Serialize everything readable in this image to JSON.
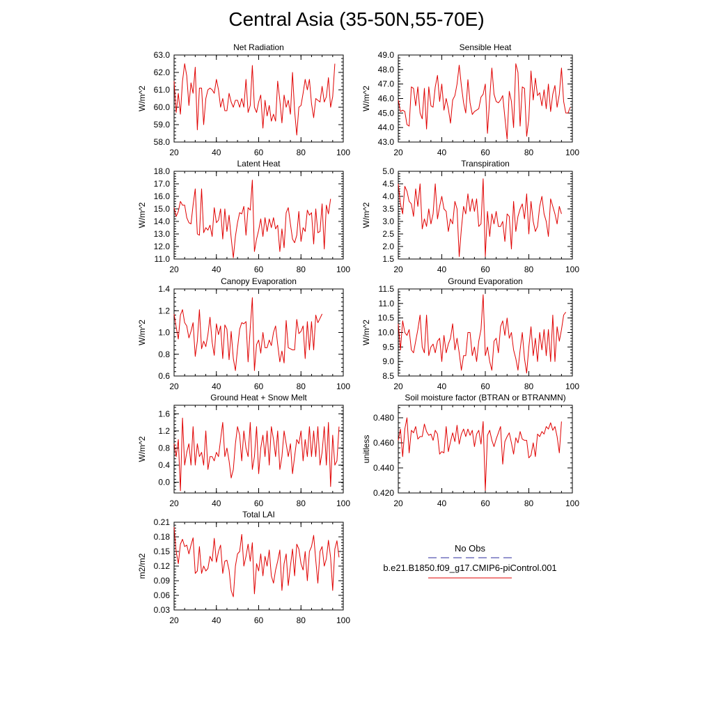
{
  "page_title": "Central Asia (35-50N,55-70E)",
  "colors": {
    "model_line": "#e00000",
    "obs_line": "#2b2b9c",
    "axis": "#000000"
  },
  "legend": {
    "obs_label": "No Obs",
    "model_label": "b.e21.B1850.f09_g17.CMIP6-piControl.001"
  },
  "chart_data": [
    {
      "type": "line",
      "title": "Net Radiation",
      "ylabel": "W/m^2",
      "xlim": [
        20,
        100
      ],
      "ylim": [
        58.0,
        63.0
      ],
      "xticks": [
        "20",
        "40",
        "60",
        "80",
        "100"
      ],
      "yticks": [
        "58.0",
        "59.0",
        "60.0",
        "61.0",
        "62.0",
        "63.0"
      ],
      "x_start": 20,
      "series": [
        {
          "values": [
            61.5,
            59.7,
            60.8,
            59.6,
            61.5,
            62.5,
            61.8,
            60.1,
            61.4,
            60.8,
            62.3,
            58.7,
            61.1,
            61.1,
            59.0,
            60.5,
            61.0,
            61.1,
            61.0,
            60.8,
            61.6,
            61.0,
            60.0,
            60.5,
            59.8,
            59.8,
            60.8,
            60.3,
            60.0,
            60.4,
            60.4,
            60.0,
            60.5,
            60.0,
            61.6,
            59.7,
            60.1,
            62.4,
            60.0,
            59.7,
            60.3,
            60.7,
            58.8,
            60.4,
            59.5,
            60.1,
            59.2,
            59.6,
            59.2,
            61.5,
            60.4,
            59.1,
            60.7,
            60.0,
            60.4,
            59.6,
            62.0,
            59.8,
            58.4,
            60.0,
            60.1,
            60.8,
            61.6,
            61.0,
            61.6,
            60.2,
            59.4,
            60.5,
            60.4,
            60.3,
            61.2,
            60.3,
            60.6,
            61.7,
            60.0,
            60.6,
            62.5
          ]
        }
      ]
    },
    {
      "type": "line",
      "title": "Sensible Heat",
      "ylabel": "W/m^2",
      "xlim": [
        20,
        100
      ],
      "ylim": [
        43.0,
        49.0
      ],
      "xticks": [
        "20",
        "40",
        "60",
        "80",
        "100"
      ],
      "yticks": [
        "43.0",
        "44.0",
        "45.0",
        "46.0",
        "47.0",
        "48.0",
        "49.0"
      ],
      "x_start": 20,
      "series": [
        {
          "values": [
            45.9,
            45.1,
            45.2,
            45.1,
            44.2,
            44.1,
            46.8,
            46.7,
            45.5,
            46.8,
            45.0,
            44.6,
            46.7,
            43.9,
            46.8,
            45.5,
            45.4,
            46.8,
            47.6,
            45.8,
            47.0,
            45.2,
            46.0,
            45.3,
            44.3,
            45.9,
            46.2,
            47.0,
            48.3,
            46.9,
            45.7,
            45.0,
            47.3,
            45.7,
            44.9,
            45.1,
            45.2,
            45.3,
            46.1,
            46.3,
            47.0,
            43.6,
            46.0,
            48.1,
            46.3,
            45.8,
            45.7,
            45.9,
            46.2,
            44.7,
            43.2,
            46.5,
            45.8,
            44.0,
            48.4,
            47.8,
            44.1,
            46.8,
            46.7,
            43.4,
            44.6,
            47.9,
            45.9,
            47.4,
            46.2,
            46.4,
            45.5,
            46.6,
            45.3,
            47.0,
            45.1,
            46.3,
            46.9,
            45.4,
            46.3,
            48.1,
            45.8,
            45.0,
            45.0,
            45.4
          ]
        }
      ]
    },
    {
      "type": "line",
      "title": "Latent Heat",
      "ylabel": "W/m^2",
      "xlim": [
        20,
        100
      ],
      "ylim": [
        11.0,
        18.0
      ],
      "xticks": [
        "20",
        "40",
        "60",
        "80",
        "100"
      ],
      "yticks": [
        "11.0",
        "12.0",
        "13.0",
        "14.0",
        "15.0",
        "16.0",
        "17.0",
        "18.0"
      ],
      "x_start": 20,
      "series": [
        {
          "values": [
            15.1,
            14.4,
            14.8,
            15.6,
            15.3,
            15.3,
            14.3,
            13.9,
            13.8,
            15.3,
            16.6,
            13.0,
            12.9,
            16.6,
            13.1,
            13.5,
            13.3,
            13.7,
            12.8,
            15.1,
            13.9,
            14.1,
            15.0,
            12.6,
            15.0,
            13.2,
            14.5,
            12.7,
            11.1,
            12.8,
            13.9,
            14.7,
            14.6,
            15.2,
            12.9,
            15.1,
            14.9,
            17.3,
            11.6,
            12.6,
            13.3,
            14.2,
            12.8,
            14.3,
            13.2,
            14.2,
            13.5,
            14.3,
            13.4,
            13.7,
            11.6,
            13.4,
            11.9,
            14.7,
            15.1,
            13.8,
            12.6,
            12.3,
            12.9,
            14.8,
            12.4,
            13.5,
            13.2,
            14.9,
            14.5,
            14.7,
            12.2,
            15.0,
            13.1,
            13.2,
            15.4,
            11.8,
            15.3,
            14.6,
            15.8
          ]
        }
      ]
    },
    {
      "type": "line",
      "title": "Transpiration",
      "ylabel": "W/m^2",
      "xlim": [
        20,
        100
      ],
      "ylim": [
        1.5,
        5.0
      ],
      "xticks": [
        "20",
        "40",
        "60",
        "80",
        "100"
      ],
      "yticks": [
        "1.5",
        "2.0",
        "2.5",
        "3.0",
        "3.5",
        "4.0",
        "4.5",
        "5.0"
      ],
      "x_start": 20,
      "series": [
        {
          "values": [
            4.5,
            3.7,
            3.3,
            4.4,
            4.2,
            3.8,
            3.7,
            3.2,
            4.3,
            3.6,
            4.5,
            2.7,
            3.1,
            2.8,
            3.5,
            2.9,
            3.3,
            4.5,
            3.1,
            3.6,
            4.0,
            3.5,
            3.4,
            2.6,
            3.1,
            2.9,
            3.8,
            3.5,
            1.6,
            2.7,
            3.6,
            3.3,
            4.1,
            3.4,
            3.9,
            3.4,
            3.9,
            2.8,
            2.9,
            4.7,
            1.6,
            3.4,
            2.4,
            3.3,
            2.9,
            3.4,
            2.8,
            2.8,
            3.0,
            2.2,
            3.3,
            3.2,
            1.9,
            3.8,
            2.6,
            3.2,
            3.5,
            3.7,
            3.1,
            4.1,
            2.5,
            3.8,
            3.0,
            2.6,
            2.8,
            3.6,
            4.0,
            3.3,
            3.0,
            2.4,
            3.9,
            3.6,
            3.3,
            2.9,
            3.6,
            3.3
          ]
        }
      ]
    },
    {
      "type": "line",
      "title": "Canopy Evaporation",
      "ylabel": "W/m^2",
      "xlim": [
        20,
        100
      ],
      "ylim": [
        0.6,
        1.4
      ],
      "xticks": [
        "20",
        "40",
        "60",
        "80",
        "100"
      ],
      "yticks": [
        "0.6",
        "0.8",
        "1.0",
        "1.2",
        "1.4"
      ],
      "x_start": 20,
      "series": [
        {
          "values": [
            1.17,
            1.05,
            0.94,
            1.16,
            1.21,
            1.09,
            1.06,
            0.95,
            1.01,
            1.09,
            0.78,
            0.92,
            1.21,
            0.85,
            0.92,
            0.87,
            0.98,
            1.14,
            0.91,
            0.79,
            1.08,
            0.98,
            1.06,
            0.76,
            1.07,
            1.03,
            0.75,
            1.01,
            0.76,
            0.65,
            0.85,
            1.03,
            1.09,
            1.08,
            1.1,
            0.73,
            1.04,
            1.32,
            0.65,
            0.89,
            0.93,
            0.81,
            1.0,
            0.86,
            0.86,
            0.93,
            0.88,
            1.0,
            1.06,
            0.89,
            0.73,
            0.83,
            0.72,
            1.11,
            0.86,
            0.85,
            0.84,
            0.84,
            1.12,
            0.99,
            1.01,
            1.06,
            0.76,
            1.1,
            0.84,
            1.1,
            0.84,
            1.16,
            1.09,
            1.13,
            1.17
          ]
        }
      ]
    },
    {
      "type": "line",
      "title": "Ground Evaporation",
      "ylabel": "W/m^2",
      "xlim": [
        20,
        100
      ],
      "ylim": [
        8.5,
        11.5
      ],
      "xticks": [
        "20",
        "40",
        "60",
        "80",
        "100"
      ],
      "yticks": [
        "8.5",
        "9.0",
        "9.5",
        "10.0",
        "10.5",
        "11.0",
        "11.5"
      ],
      "x_start": 20,
      "series": [
        {
          "values": [
            10.3,
            9.4,
            10.4,
            10.0,
            9.9,
            10.1,
            9.4,
            9.3,
            9.7,
            10.1,
            10.6,
            9.5,
            9.3,
            10.6,
            9.2,
            9.5,
            9.6,
            9.3,
            9.7,
            9.8,
            9.0,
            9.9,
            9.3,
            9.6,
            9.8,
            10.3,
            9.4,
            9.8,
            9.3,
            8.7,
            9.2,
            9.2,
            10.0,
            10.0,
            9.2,
            9.5,
            9.0,
            9.7,
            10.1,
            11.3,
            9.2,
            9.5,
            9.0,
            8.7,
            9.7,
            9.8,
            9.3,
            10.2,
            10.4,
            9.9,
            10.5,
            9.8,
            10.0,
            9.4,
            9.1,
            8.7,
            9.4,
            10.0,
            9.1,
            8.6,
            9.5,
            10.2,
            9.2,
            9.8,
            9.0,
            10.0,
            9.4,
            10.1,
            9.2,
            10.1,
            9.0,
            10.6,
            9.0,
            10.2,
            9.7,
            10.1,
            10.6,
            10.7
          ]
        }
      ]
    },
    {
      "type": "line",
      "title": "Ground Heat + Snow Melt",
      "ylabel": "W/m^2",
      "xlim": [
        20,
        100
      ],
      "ylim": [
        -0.25,
        1.8
      ],
      "xticks": [
        "20",
        "40",
        "60",
        "80",
        "100"
      ],
      "yticks": [
        "0.0",
        "0.4",
        "0.8",
        "1.2",
        "1.6"
      ],
      "x_start": 20,
      "series": [
        {
          "values": [
            0.9,
            0.6,
            1.0,
            -0.2,
            1.5,
            0.4,
            0.7,
            0.9,
            0.4,
            1.3,
            0.4,
            0.9,
            0.6,
            0.7,
            0.4,
            1.2,
            0.3,
            0.6,
            0.6,
            0.5,
            0.7,
            0.6,
            1.0,
            1.4,
            0.6,
            0.8,
            0.5,
            0.1,
            0.3,
            0.9,
            1.3,
            1.1,
            0.5,
            1.2,
            0.8,
            0.6,
            1.4,
            0.3,
            0.6,
            1.3,
            0.2,
            0.8,
            1.1,
            0.6,
            1.2,
            0.4,
            1.3,
            1.0,
            0.6,
            1.2,
            0.3,
            0.6,
            1.2,
            0.9,
            0.6,
            0.9,
            0.2,
            0.6,
            1.0,
            0.9,
            1.2,
            0.5,
            1.0,
            0.6,
            1.3,
            0.6,
            1.2,
            0.6,
            1.3,
            0.4,
            0.7,
            1.3,
            0.4,
            1.4,
            -0.1,
            1.1,
            0.4,
            0.5,
            1.3
          ]
        }
      ]
    },
    {
      "type": "line",
      "title": "Soil moisture factor (BTRAN or BTRANMN)",
      "ylabel": "unitless",
      "xlim": [
        20,
        100
      ],
      "ylim": [
        0.42,
        0.49
      ],
      "xticks": [
        "20",
        "40",
        "60",
        "80",
        "100"
      ],
      "yticks": [
        "0.420",
        "0.440",
        "0.460",
        "0.480"
      ],
      "x_start": 20,
      "series": [
        {
          "values": [
            0.462,
            0.471,
            0.449,
            0.471,
            0.48,
            0.452,
            0.47,
            0.468,
            0.473,
            0.463,
            0.465,
            0.465,
            0.475,
            0.469,
            0.466,
            0.467,
            0.462,
            0.47,
            0.467,
            0.451,
            0.453,
            0.452,
            0.473,
            0.453,
            0.461,
            0.468,
            0.461,
            0.474,
            0.459,
            0.467,
            0.471,
            0.465,
            0.471,
            0.466,
            0.47,
            0.457,
            0.467,
            0.47,
            0.459,
            0.477,
            0.422,
            0.466,
            0.47,
            0.462,
            0.457,
            0.463,
            0.468,
            0.473,
            0.443,
            0.461,
            0.465,
            0.468,
            0.46,
            0.451,
            0.464,
            0.46,
            0.469,
            0.463,
            0.462,
            0.462,
            0.448,
            0.45,
            0.46,
            0.449,
            0.467,
            0.465,
            0.469,
            0.467,
            0.473,
            0.471,
            0.476,
            0.47,
            0.473,
            0.465,
            0.452,
            0.477
          ]
        }
      ]
    },
    {
      "type": "line",
      "title": "Total LAI",
      "ylabel": "m2/m2",
      "xlim": [
        20,
        100
      ],
      "ylim": [
        0.03,
        0.21
      ],
      "xticks": [
        "20",
        "40",
        "60",
        "80",
        "100"
      ],
      "yticks": [
        "0.03",
        "0.06",
        "0.09",
        "0.12",
        "0.15",
        "0.18",
        "0.21"
      ],
      "x_start": 20,
      "series": [
        {
          "values": [
            0.2,
            0.15,
            0.125,
            0.165,
            0.175,
            0.16,
            0.163,
            0.145,
            0.163,
            0.178,
            0.105,
            0.11,
            0.16,
            0.105,
            0.12,
            0.11,
            0.115,
            0.14,
            0.13,
            0.177,
            0.128,
            0.15,
            0.163,
            0.105,
            0.13,
            0.132,
            0.112,
            0.07,
            0.057,
            0.12,
            0.145,
            0.15,
            0.185,
            0.12,
            0.14,
            0.165,
            0.13,
            0.168,
            0.063,
            0.125,
            0.11,
            0.145,
            0.1,
            0.14,
            0.12,
            0.153,
            0.1,
            0.085,
            0.112,
            0.13,
            0.153,
            0.07,
            0.125,
            0.145,
            0.08,
            0.12,
            0.155,
            0.1,
            0.165,
            0.155,
            0.125,
            0.112,
            0.15,
            0.09,
            0.15,
            0.16,
            0.183,
            0.132,
            0.085,
            0.15,
            0.16,
            0.12,
            0.135,
            0.173,
            0.138,
            0.07,
            0.155,
            0.172,
            0.138
          ]
        }
      ]
    }
  ]
}
